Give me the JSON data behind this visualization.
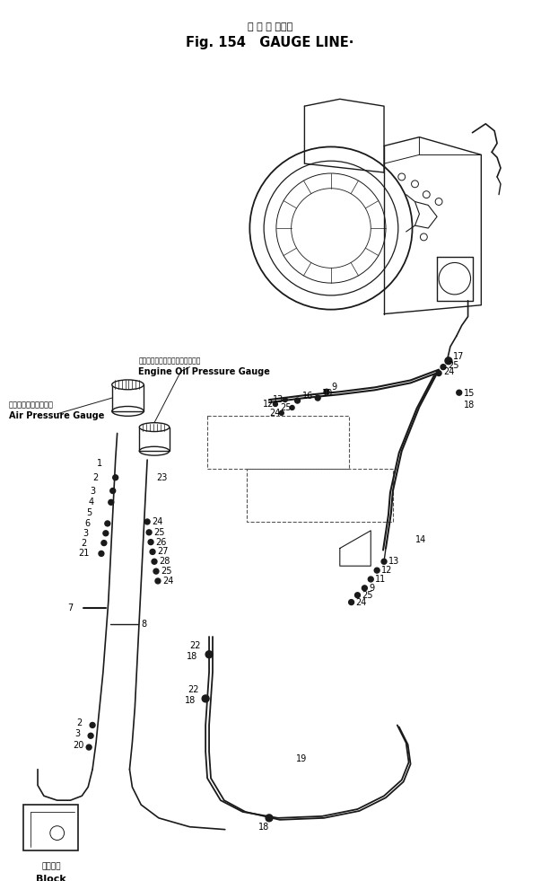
{
  "title_jp": "ゲ ー ジ ライン",
  "title_en": "Fig. 154   GAUGE LINE·",
  "bg_color": "#ffffff",
  "line_color": "#1a1a1a",
  "fig_width": 6.03,
  "fig_height": 9.81,
  "label_air_pressure_jp": "エアプレッシャゲージ",
  "label_air_pressure_en": "Air Pressure Gauge",
  "label_engine_oil_jp": "エンジンオイルプレッシャゲージ",
  "label_engine_oil_en": "Engine Oil Pressure Gauge",
  "label_block_jp": "ブロック",
  "label_block_en": "Block"
}
